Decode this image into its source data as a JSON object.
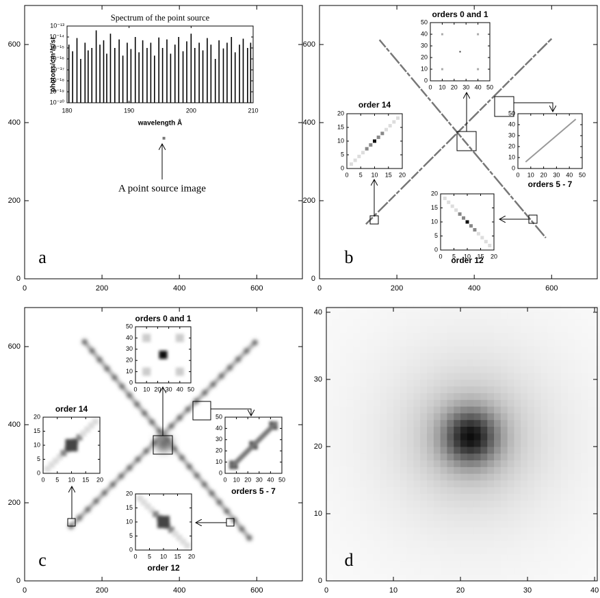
{
  "chart_data": [
    {
      "type": "image",
      "panel_label": "a",
      "xlim": [
        0,
        718
      ],
      "ylim": [
        0,
        700
      ],
      "xticks": [
        0,
        200,
        400,
        600
      ],
      "yticks": [
        0,
        200,
        400,
        600
      ],
      "annotation": "A point source image",
      "inset": {
        "type": "bar",
        "title": "Spectrum of the point source",
        "xlabel": "wavelength Å",
        "ylabel": "photons/cm²/s/sr",
        "log_y": true,
        "color": "#000000",
        "xlim": [
          180,
          210
        ],
        "ylim": [
          1e-20,
          1e-13
        ],
        "xticks": [
          180,
          190,
          200,
          210
        ],
        "yticks": [
          {
            "value": 1e-13,
            "label": "10⁻¹³"
          },
          {
            "value": 1e-14,
            "label": "10⁻¹⁴"
          },
          {
            "value": 1e-15,
            "label": "10⁻¹⁵"
          },
          {
            "value": 1e-16,
            "label": "10⁻¹⁶"
          },
          {
            "value": 1e-17,
            "label": "10⁻¹⁷"
          },
          {
            "value": 1e-18,
            "label": "10⁻¹⁸"
          },
          {
            "value": 1e-19,
            "label": "10⁻¹⁹"
          },
          {
            "value": 1e-20,
            "label": "10⁻²⁰"
          }
        ],
        "x": [
          180.3,
          180.9,
          181.6,
          182.2,
          182.9,
          183.4,
          184.0,
          184.7,
          185.3,
          185.9,
          186.4,
          187.0,
          187.7,
          188.4,
          189.0,
          189.7,
          190.3,
          191.0,
          191.6,
          192.2,
          192.9,
          193.5,
          194.1,
          194.8,
          195.4,
          196.1,
          196.7,
          197.4,
          198.0,
          198.7,
          199.3,
          200.0,
          200.6,
          201.3,
          201.9,
          202.6,
          203.2,
          203.9,
          204.5,
          205.2,
          205.8,
          206.5,
          207.1,
          207.8,
          208.4,
          209.1,
          209.6
        ],
        "values": [
          2e-15,
          5e-16,
          8e-15,
          1e-16,
          3e-15,
          6e-16,
          1e-15,
          4e-14,
          2e-15,
          5e-15,
          3e-16,
          2e-14,
          1e-15,
          6e-15,
          2e-16,
          3e-15,
          8e-16,
          1e-14,
          4e-16,
          5e-15,
          1e-15,
          3e-15,
          2e-16,
          9e-15,
          1e-15,
          6e-15,
          3e-16,
          2e-15,
          1e-14,
          5e-16,
          4e-15,
          2e-14,
          1e-15,
          3e-15,
          6e-16,
          8e-15,
          2e-15,
          1e-16,
          5e-15,
          9e-16,
          3e-15,
          1e-14,
          4e-16,
          2e-15,
          7e-15,
          1e-15,
          3e-15
        ]
      }
    },
    {
      "type": "image",
      "panel_label": "b",
      "xlim": [
        0,
        718
      ],
      "ylim": [
        0,
        700
      ],
      "xticks": [
        0,
        200,
        400,
        600
      ],
      "yticks": [
        0,
        200,
        400,
        600
      ],
      "insets": [
        {
          "title": "orders 0 and 1",
          "xlim": [
            0,
            50
          ],
          "ylim": [
            0,
            50
          ],
          "xticks": [
            0,
            10,
            20,
            30,
            40,
            50
          ],
          "yticks": [
            0,
            10,
            20,
            30,
            40,
            50
          ]
        },
        {
          "title": "order 14",
          "xlim": [
            0,
            20
          ],
          "ylim": [
            0,
            20
          ],
          "xticks": [
            0,
            5,
            10,
            15,
            20
          ],
          "yticks": [
            0,
            5,
            10,
            15,
            20
          ]
        },
        {
          "title": "orders 5 - 7",
          "xlim": [
            0,
            50
          ],
          "ylim": [
            0,
            50
          ],
          "xticks": [
            0,
            10,
            20,
            30,
            40,
            50
          ],
          "yticks": [
            0,
            10,
            20,
            30,
            40,
            50
          ]
        },
        {
          "title": "order 12",
          "xlim": [
            0,
            20
          ],
          "ylim": [
            0,
            20
          ],
          "xticks": [
            0,
            5,
            10,
            15,
            20
          ],
          "yticks": [
            0,
            5,
            10,
            15,
            20
          ]
        }
      ]
    },
    {
      "type": "image",
      "panel_label": "c",
      "xlim": [
        0,
        718
      ],
      "ylim": [
        0,
        700
      ],
      "xticks": [
        0,
        200,
        400,
        600
      ],
      "yticks": [
        0,
        200,
        400,
        600
      ],
      "insets": [
        {
          "title": "orders 0 and 1",
          "xlim": [
            0,
            50
          ],
          "ylim": [
            0,
            50
          ],
          "xticks": [
            0,
            10,
            20,
            30,
            40,
            50
          ],
          "yticks": [
            0,
            10,
            20,
            30,
            40,
            50
          ]
        },
        {
          "title": "order 14",
          "xlim": [
            0,
            20
          ],
          "ylim": [
            0,
            20
          ],
          "xticks": [
            0,
            5,
            10,
            15,
            20
          ],
          "yticks": [
            0,
            5,
            10,
            15,
            20
          ]
        },
        {
          "title": "orders 5 - 7",
          "xlim": [
            0,
            50
          ],
          "ylim": [
            0,
            50
          ],
          "xticks": [
            0,
            10,
            20,
            30,
            40,
            50
          ],
          "yticks": [
            0,
            10,
            20,
            30,
            40,
            50
          ]
        },
        {
          "title": "order 12",
          "xlim": [
            0,
            20
          ],
          "ylim": [
            0,
            20
          ],
          "xticks": [
            0,
            5,
            10,
            15,
            20
          ],
          "yticks": [
            0,
            5,
            10,
            15,
            20
          ]
        }
      ]
    },
    {
      "type": "image",
      "panel_label": "d",
      "xlim": [
        0,
        40.4
      ],
      "ylim": [
        0,
        40.7
      ],
      "xticks": [
        0,
        10,
        20,
        30,
        40
      ],
      "yticks": [
        0,
        10,
        20,
        30,
        40
      ]
    }
  ]
}
